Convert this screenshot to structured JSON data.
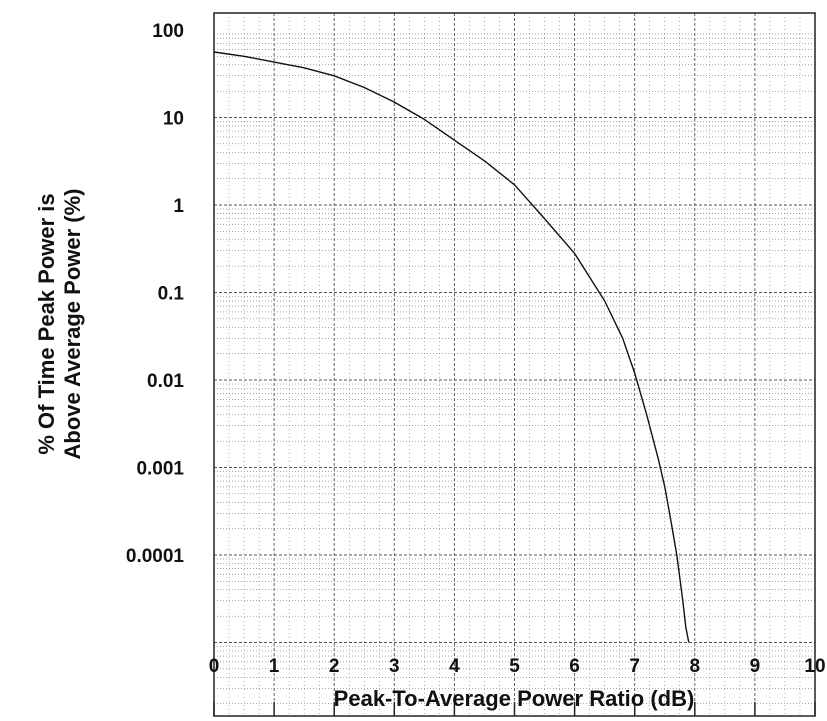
{
  "chart_data": {
    "type": "line",
    "title": "",
    "xlabel": "Peak-To-Average Power Ratio (dB)",
    "ylabel_lines": [
      "% Of Time Peak Power is",
      "Above Average Power (%)"
    ],
    "x_ticks": [
      0,
      1,
      2,
      3,
      4,
      5,
      6,
      7,
      8,
      9,
      10
    ],
    "x_tick_labels": [
      "0",
      "1",
      "2",
      "3",
      "4",
      "5",
      "6",
      "7",
      "8",
      "9",
      "10"
    ],
    "y_tick_labels": [
      "100",
      "10",
      "1",
      "0.1",
      "0.01",
      "0.001",
      "0.0001"
    ],
    "y_ticks": [
      100,
      10,
      1,
      0.1,
      0.01,
      0.001,
      0.0001
    ],
    "xlim": [
      0,
      10
    ],
    "ylim": [
      1e-05,
      200
    ],
    "y_scale": "log",
    "grid": true,
    "series": [
      {
        "x": [
          0,
          0.5,
          1,
          1.5,
          2,
          2.5,
          3,
          3.5,
          4,
          4.5,
          5,
          5.5,
          6,
          6.5,
          6.8,
          7,
          7.2,
          7.4,
          7.5,
          7.6,
          7.7,
          7.8,
          7.85,
          7.9
        ],
        "y": [
          56,
          50,
          43,
          37,
          30,
          22,
          15,
          9.5,
          5.5,
          3.2,
          1.7,
          0.7,
          0.28,
          0.08,
          0.03,
          0.012,
          0.004,
          0.0012,
          0.0006,
          0.00025,
          0.0001,
          3e-05,
          1.5e-05,
          1e-05
        ]
      }
    ],
    "line_color": "#111111",
    "grid_color": "#555555"
  }
}
